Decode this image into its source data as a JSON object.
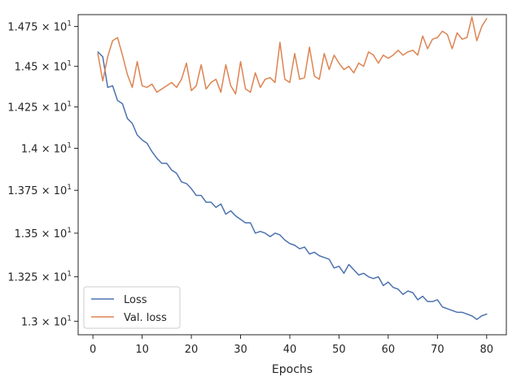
{
  "chart_data": {
    "type": "line",
    "title": "",
    "xlabel": "Epochs",
    "ylabel": "",
    "xlim": [
      -3,
      84
    ],
    "ylim": [
      12.925,
      14.825
    ],
    "x_ticks": [
      0,
      10,
      20,
      30,
      40,
      50,
      60,
      70,
      80
    ],
    "x_tick_labels": [
      "0",
      "10",
      "20",
      "30",
      "40",
      "50",
      "60",
      "70",
      "80"
    ],
    "y_ticks": [
      13.0,
      13.25,
      13.5,
      13.75,
      14.0,
      14.25,
      14.5,
      14.75
    ],
    "y_tick_labels": [
      {
        "mant": "1.3",
        "exp": "1"
      },
      {
        "mant": "1.325",
        "exp": "1"
      },
      {
        "mant": "1.35",
        "exp": "1"
      },
      {
        "mant": "1.375",
        "exp": "1"
      },
      {
        "mant": "1.4",
        "exp": "1"
      },
      {
        "mant": "1.425",
        "exp": "1"
      },
      {
        "mant": "1.45",
        "exp": "1"
      },
      {
        "mant": "1.475",
        "exp": "1"
      }
    ],
    "y_scale": "log",
    "grid": false,
    "legend_position": "lower-left",
    "series": [
      {
        "name": "Loss",
        "color": "#4c72b0",
        "x": [
          1,
          2,
          3,
          4,
          5,
          6,
          7,
          8,
          9,
          10,
          11,
          12,
          13,
          14,
          15,
          16,
          17,
          18,
          19,
          20,
          21,
          22,
          23,
          24,
          25,
          26,
          27,
          28,
          29,
          30,
          31,
          32,
          33,
          34,
          35,
          36,
          37,
          38,
          39,
          40,
          41,
          42,
          43,
          44,
          45,
          46,
          47,
          48,
          49,
          50,
          51,
          52,
          53,
          54,
          55,
          56,
          57,
          58,
          59,
          60,
          61,
          62,
          63,
          64,
          65,
          66,
          67,
          68,
          69,
          70,
          71,
          72,
          73,
          74,
          75,
          76,
          77,
          78,
          79,
          80
        ],
        "values": [
          14.59,
          14.56,
          14.37,
          14.38,
          14.29,
          14.27,
          14.18,
          14.15,
          14.08,
          14.05,
          14.03,
          13.98,
          13.94,
          13.91,
          13.91,
          13.87,
          13.85,
          13.8,
          13.79,
          13.76,
          13.72,
          13.72,
          13.68,
          13.68,
          13.65,
          13.67,
          13.61,
          13.63,
          13.6,
          13.58,
          13.56,
          13.56,
          13.5,
          13.51,
          13.5,
          13.48,
          13.5,
          13.49,
          13.46,
          13.44,
          13.43,
          13.41,
          13.42,
          13.38,
          13.39,
          13.37,
          13.36,
          13.35,
          13.3,
          13.31,
          13.27,
          13.32,
          13.29,
          13.26,
          13.27,
          13.25,
          13.24,
          13.25,
          13.2,
          13.22,
          13.19,
          13.18,
          13.15,
          13.17,
          13.16,
          13.12,
          13.14,
          13.11,
          13.11,
          13.12,
          13.08,
          13.07,
          13.06,
          13.05,
          13.05,
          13.04,
          13.03,
          13.01,
          13.03,
          13.04
        ]
      },
      {
        "name": "Val. loss",
        "color": "#dd8452",
        "x": [
          1,
          2,
          3,
          4,
          5,
          6,
          7,
          8,
          9,
          10,
          11,
          12,
          13,
          14,
          15,
          16,
          17,
          18,
          19,
          20,
          21,
          22,
          23,
          24,
          25,
          26,
          27,
          28,
          29,
          30,
          31,
          32,
          33,
          34,
          35,
          36,
          37,
          38,
          39,
          40,
          41,
          42,
          43,
          44,
          45,
          46,
          47,
          48,
          49,
          50,
          51,
          52,
          53,
          54,
          55,
          56,
          57,
          58,
          59,
          60,
          61,
          62,
          63,
          64,
          65,
          66,
          67,
          68,
          69,
          70,
          71,
          72,
          73,
          74,
          75,
          76,
          77,
          78,
          79,
          80
        ],
        "values": [
          14.58,
          14.41,
          14.56,
          14.66,
          14.68,
          14.57,
          14.45,
          14.37,
          14.53,
          14.38,
          14.37,
          14.39,
          14.34,
          14.36,
          14.38,
          14.4,
          14.37,
          14.42,
          14.52,
          14.35,
          14.38,
          14.51,
          14.36,
          14.4,
          14.42,
          14.34,
          14.51,
          14.38,
          14.33,
          14.53,
          14.36,
          14.34,
          14.46,
          14.37,
          14.42,
          14.43,
          14.4,
          14.65,
          14.42,
          14.4,
          14.58,
          14.42,
          14.43,
          14.62,
          14.44,
          14.42,
          14.58,
          14.48,
          14.57,
          14.52,
          14.48,
          14.5,
          14.46,
          14.52,
          14.5,
          14.59,
          14.57,
          14.52,
          14.57,
          14.55,
          14.57,
          14.6,
          14.57,
          14.59,
          14.6,
          14.57,
          14.69,
          14.61,
          14.67,
          14.68,
          14.72,
          14.7,
          14.61,
          14.71,
          14.67,
          14.68,
          14.81,
          14.66,
          14.75,
          14.8
        ]
      }
    ]
  }
}
